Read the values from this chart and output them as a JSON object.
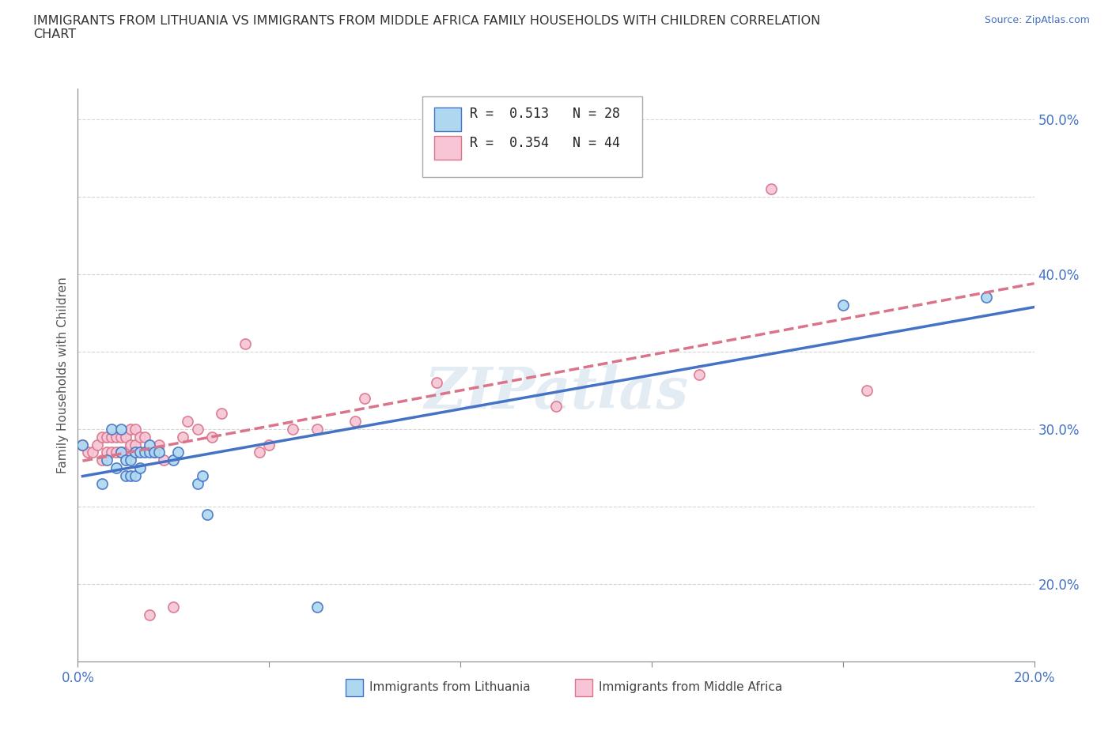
{
  "title": "IMMIGRANTS FROM LITHUANIA VS IMMIGRANTS FROM MIDDLE AFRICA FAMILY HOUSEHOLDS WITH CHILDREN CORRELATION\nCHART",
  "source_text": "Source: ZipAtlas.com",
  "ylabel": "Family Households with Children",
  "xlim": [
    0.0,
    0.2
  ],
  "ylim": [
    0.15,
    0.52
  ],
  "x_ticks": [
    0.0,
    0.04,
    0.08,
    0.12,
    0.16,
    0.2
  ],
  "y_ticks": [
    0.2,
    0.25,
    0.3,
    0.35,
    0.4,
    0.45,
    0.5
  ],
  "legend_entry1": "R =  0.513   N = 28",
  "legend_entry2": "R =  0.354   N = 44",
  "legend_label1": "Immigrants from Lithuania",
  "legend_label2": "Immigrants from Middle Africa",
  "color1": "#ADD8F0",
  "color2": "#F7C5D5",
  "line_color1": "#4472C4",
  "line_color2": "#D9748A",
  "background_color": "#FFFFFF",
  "grid_color": "#CCCCCC",
  "watermark": "ZIPatlas",
  "scatter1_x": [
    0.001,
    0.005,
    0.006,
    0.007,
    0.008,
    0.009,
    0.009,
    0.01,
    0.01,
    0.011,
    0.011,
    0.012,
    0.012,
    0.013,
    0.013,
    0.014,
    0.015,
    0.015,
    0.016,
    0.017,
    0.02,
    0.021,
    0.025,
    0.026,
    0.027,
    0.05,
    0.16,
    0.19
  ],
  "scatter1_y": [
    0.29,
    0.265,
    0.28,
    0.3,
    0.275,
    0.285,
    0.3,
    0.27,
    0.28,
    0.27,
    0.28,
    0.27,
    0.285,
    0.275,
    0.285,
    0.285,
    0.285,
    0.29,
    0.285,
    0.285,
    0.28,
    0.285,
    0.265,
    0.27,
    0.245,
    0.185,
    0.38,
    0.385
  ],
  "scatter2_x": [
    0.001,
    0.002,
    0.003,
    0.004,
    0.005,
    0.005,
    0.006,
    0.006,
    0.007,
    0.007,
    0.008,
    0.008,
    0.009,
    0.009,
    0.01,
    0.01,
    0.011,
    0.011,
    0.012,
    0.012,
    0.013,
    0.014,
    0.015,
    0.016,
    0.017,
    0.018,
    0.02,
    0.022,
    0.023,
    0.025,
    0.028,
    0.03,
    0.035,
    0.038,
    0.04,
    0.045,
    0.05,
    0.058,
    0.06,
    0.075,
    0.1,
    0.13,
    0.145,
    0.165
  ],
  "scatter2_y": [
    0.29,
    0.285,
    0.285,
    0.29,
    0.28,
    0.295,
    0.285,
    0.295,
    0.285,
    0.295,
    0.285,
    0.295,
    0.285,
    0.295,
    0.285,
    0.295,
    0.29,
    0.3,
    0.29,
    0.3,
    0.295,
    0.295,
    0.18,
    0.285,
    0.29,
    0.28,
    0.185,
    0.295,
    0.305,
    0.3,
    0.295,
    0.31,
    0.355,
    0.285,
    0.29,
    0.3,
    0.3,
    0.305,
    0.32,
    0.33,
    0.315,
    0.335,
    0.455,
    0.325
  ]
}
